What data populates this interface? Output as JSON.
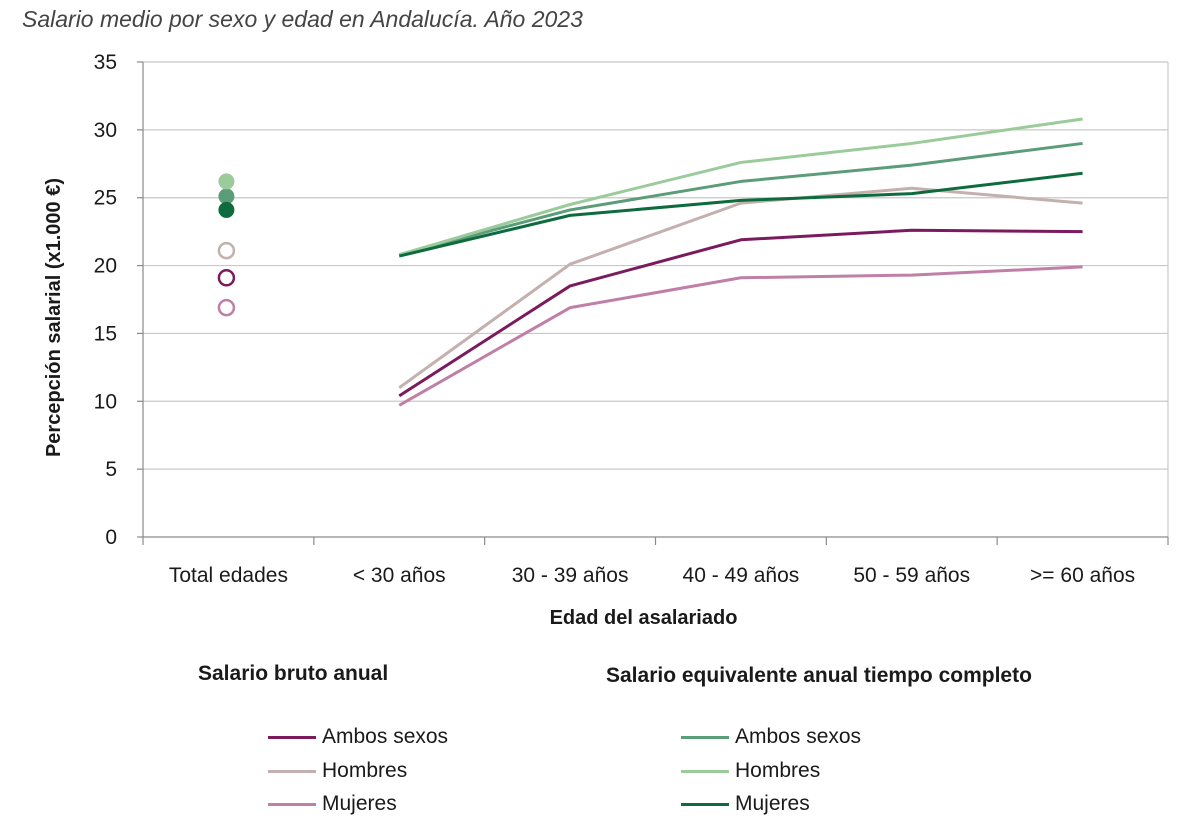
{
  "title": "Salario medio por sexo y edad en Andalucía. Año 2023",
  "chart_data": {
    "type": "line",
    "title": "Salario medio por sexo y edad en Andalucía. Año 2023",
    "xlabel": "Edad del asalariado",
    "ylabel": "Percepción salarial (x1.000 €)",
    "categories": [
      "Total edades",
      "< 30 años",
      "30 - 39 años",
      "40 - 49 años",
      "50 - 59 años",
      ">= 60 años"
    ],
    "ylim": [
      0,
      35
    ],
    "yticks": [
      0,
      5,
      10,
      15,
      20,
      25,
      30,
      35
    ],
    "grid": true,
    "legend_groups": [
      {
        "title": "Salario bruto anual",
        "series_indices": [
          0,
          1,
          2
        ]
      },
      {
        "title": "Salario equivalente anual tiempo completo",
        "series_indices": [
          3,
          4,
          5
        ]
      }
    ],
    "series": [
      {
        "group": "Salario bruto anual",
        "name": "Ambos sexos",
        "color": "#7b1b5e",
        "marker": "hollow",
        "values": [
          19.1,
          10.4,
          18.5,
          21.9,
          22.6,
          22.5
        ]
      },
      {
        "group": "Salario bruto anual",
        "name": "Hombres",
        "color": "#c4b0ae",
        "marker": "hollow",
        "values": [
          21.1,
          11.0,
          20.1,
          24.6,
          25.7,
          24.6
        ]
      },
      {
        "group": "Salario bruto anual",
        "name": "Mujeres",
        "color": "#bf7fa6",
        "marker": "hollow",
        "values": [
          16.9,
          9.7,
          16.9,
          19.1,
          19.3,
          19.9
        ]
      },
      {
        "group": "Salario equivalente anual tiempo completo",
        "name": "Ambos sexos",
        "color": "#5b9c79",
        "marker": "filled",
        "values": [
          25.1,
          20.8,
          24.1,
          26.2,
          27.4,
          29.0
        ]
      },
      {
        "group": "Salario equivalente anual tiempo completo",
        "name": "Hombres",
        "color": "#9bca9b",
        "marker": "filled",
        "values": [
          26.2,
          20.8,
          24.5,
          27.6,
          29.0,
          30.8
        ]
      },
      {
        "group": "Salario equivalente anual tiempo completo",
        "name": "Mujeres",
        "color": "#0e6b3e",
        "marker": "filled",
        "values": [
          24.1,
          20.7,
          23.7,
          24.8,
          25.3,
          26.8
        ]
      }
    ]
  }
}
